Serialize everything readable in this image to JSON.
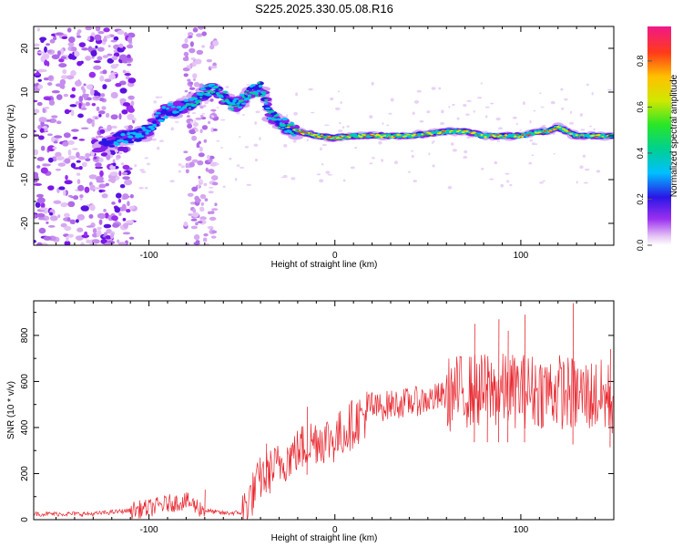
{
  "title": "S225.2025.330.05.08.R16",
  "chart_data": [
    {
      "type": "heatmap",
      "xlabel": "Height of straight line (km)",
      "ylabel": "Frequency (Hz)",
      "xlim": [
        -162,
        150
      ],
      "ylim": [
        -25,
        25
      ],
      "x_ticks": [
        -100,
        0,
        100
      ],
      "y_ticks": [
        -20,
        -10,
        0,
        10,
        20
      ],
      "colorbar": {
        "label": "Normalized spectral amplitude",
        "range": [
          0,
          0.95
        ],
        "ticks": [
          0.0,
          0.2,
          0.4,
          0.6,
          0.8
        ],
        "tick_labels": [
          "0.0",
          "0.2",
          "0.4",
          "0.6",
          "0.8"
        ]
      },
      "ridge": {
        "x": [
          -128,
          -120,
          -110,
          -100,
          -95,
          -90,
          -85,
          -80,
          -75,
          -70,
          -65,
          -60,
          -55,
          -50,
          -45,
          -40,
          -35,
          -30,
          -25,
          -20,
          -15,
          -10,
          0,
          10,
          20,
          30,
          40,
          50,
          60,
          70,
          75,
          80,
          90,
          100,
          110,
          115,
          120,
          125,
          130,
          140,
          150
        ],
        "y": [
          -3,
          -1,
          0,
          1,
          4,
          6,
          6,
          7,
          8,
          10,
          11,
          9,
          7,
          8,
          10,
          11,
          5,
          3,
          2,
          1,
          0.5,
          0,
          -0.5,
          0,
          0,
          0,
          0,
          0.5,
          1,
          1,
          0.5,
          0,
          0,
          0,
          1,
          1,
          2,
          1,
          0,
          0,
          0
        ]
      }
    },
    {
      "type": "line",
      "xlabel": "Height of straight line (km)",
      "ylabel": "SNR (10 * v/v)",
      "xlim": [
        -162,
        150
      ],
      "ylim": [
        0,
        950
      ],
      "x_ticks": [
        -100,
        0,
        100
      ],
      "y_ticks": [
        0,
        200,
        400,
        600,
        800
      ],
      "series": [
        {
          "color": "#e8262e",
          "envelope_x": [
            -162,
            -130,
            -110,
            -100,
            -90,
            -80,
            -70,
            -60,
            -50,
            -45,
            -40,
            -30,
            -20,
            -10,
            0,
            10,
            20,
            30,
            40,
            50,
            60,
            70,
            80,
            90,
            100,
            110,
            120,
            130,
            140,
            150
          ],
          "envelope_y": [
            25,
            25,
            40,
            50,
            70,
            80,
            40,
            28,
            30,
            100,
            180,
            240,
            300,
            350,
            350,
            420,
            480,
            500,
            510,
            520,
            540,
            560,
            560,
            560,
            560,
            560,
            560,
            540,
            540,
            520
          ],
          "peaks": [
            [
              -70,
              130
            ],
            [
              -37,
              330
            ],
            [
              -15,
              490
            ],
            [
              75,
              850
            ],
            [
              82,
              710
            ],
            [
              88,
              870
            ],
            [
              93,
              820
            ],
            [
              102,
              890
            ],
            [
              128,
              940
            ],
            [
              148,
              740
            ]
          ]
        }
      ]
    }
  ]
}
